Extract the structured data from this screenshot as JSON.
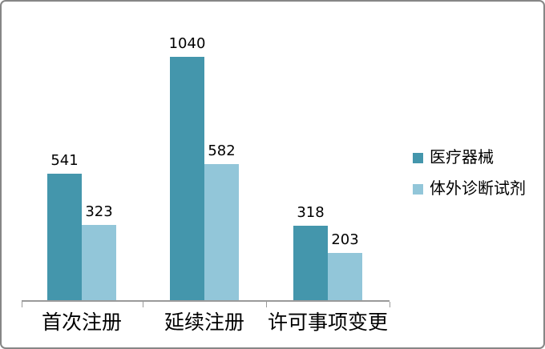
{
  "chart_data": {
    "type": "bar",
    "categories": [
      "首次注册",
      "延续注册",
      "许可事项变更"
    ],
    "series": [
      {
        "name": "医疗器械",
        "color": "#4496AC",
        "values": [
          541,
          1040,
          318
        ]
      },
      {
        "name": "体外诊断试剂",
        "color": "#92C6D9",
        "values": [
          323,
          582,
          203
        ]
      }
    ],
    "title": "",
    "xlabel": "",
    "ylabel": "",
    "ylim": [
      0,
      1190
    ],
    "grid": false,
    "data_labels": true,
    "legend_position": "right",
    "data_label_values": [
      "541",
      "323",
      "1040",
      "582",
      "318",
      "203"
    ]
  },
  "frame": {
    "border_color": "#868686",
    "background_color": "#FFFFFF"
  },
  "axis": {
    "line_color": "#9A9A9A",
    "tick_color": "#9A9A9A"
  },
  "text_color": "#000000"
}
